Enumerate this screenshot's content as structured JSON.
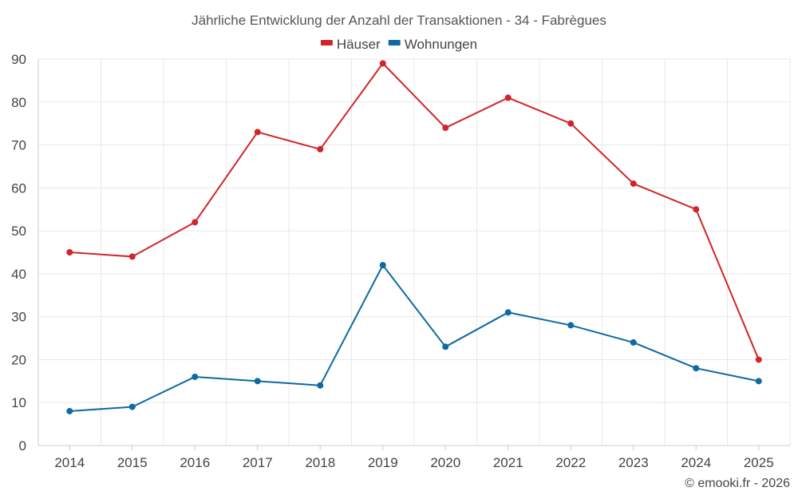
{
  "chart_data": {
    "type": "line",
    "title": "Jährliche Entwicklung der Anzahl der Transaktionen - 34 - Fabrègues",
    "categories": [
      "2014",
      "2015",
      "2016",
      "2017",
      "2018",
      "2019",
      "2020",
      "2021",
      "2022",
      "2023",
      "2024",
      "2025"
    ],
    "series": [
      {
        "name": "Häuser",
        "color": "#d0262b",
        "values": [
          45,
          44,
          52,
          73,
          69,
          89,
          74,
          81,
          75,
          61,
          55,
          20
        ]
      },
      {
        "name": "Wohnungen",
        "color": "#0d6aa2",
        "values": [
          8,
          9,
          16,
          15,
          14,
          42,
          23,
          31,
          28,
          24,
          18,
          15
        ]
      }
    ],
    "ylim": [
      0,
      90
    ],
    "yticks": [
      "0",
      "10",
      "20",
      "30",
      "40",
      "50",
      "60",
      "70",
      "80",
      "90"
    ],
    "grid": true,
    "legend_position": "top-center",
    "xlabel": "",
    "ylabel": ""
  },
  "credit": "© emooki.fr - 2026"
}
